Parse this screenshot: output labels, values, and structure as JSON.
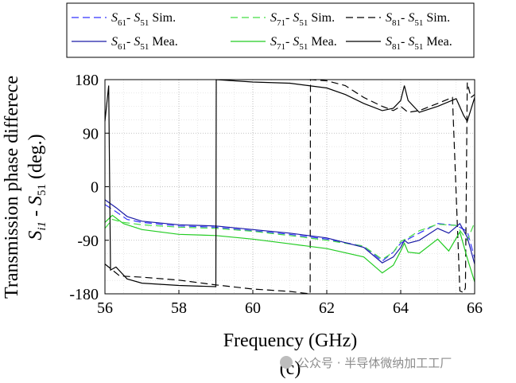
{
  "chart_data": {
    "type": "line",
    "panel_label": "(c)",
    "xlabel": "Frequency (GHz)",
    "ylabel_top": "Transmission phase differece",
    "ylabel_bottom": "S_i1 - S_51 (deg.)",
    "xlim": [
      56,
      66
    ],
    "ylim": [
      -180,
      180
    ],
    "xticks": [
      "56",
      "58",
      "60",
      "62",
      "64",
      "66"
    ],
    "yticks": [
      "180",
      "90",
      "0",
      "-90",
      "-180"
    ],
    "grid": true,
    "legend": {
      "placement": "top",
      "entries": [
        {
          "pair": [
            "61",
            "51"
          ],
          "label": "Sim.",
          "color": "#3333ff",
          "dash": "dashed"
        },
        {
          "pair": [
            "71",
            "51"
          ],
          "label": "Sim.",
          "color": "#44dd44",
          "dash": "dashed"
        },
        {
          "pair": [
            "81",
            "51"
          ],
          "label": "Sim.",
          "color": "#000000",
          "dash": "dashed"
        },
        {
          "pair": [
            "61",
            "51"
          ],
          "label": "Mea.",
          "color": "#1a1aa6",
          "dash": "solid"
        },
        {
          "pair": [
            "71",
            "51"
          ],
          "label": "Mea.",
          "color": "#22cc22",
          "dash": "solid"
        },
        {
          "pair": [
            "81",
            "51"
          ],
          "label": "Mea.",
          "color": "#000000",
          "dash": "solid"
        }
      ]
    },
    "series": [
      {
        "name": "S61 - S51 Sim.",
        "color": "#3333ff",
        "dash": "dashed",
        "points": [
          [
            56,
            -30
          ],
          [
            56.3,
            -42
          ],
          [
            56.6,
            -55
          ],
          [
            57,
            -60
          ],
          [
            58,
            -66
          ],
          [
            59,
            -68
          ],
          [
            60,
            -74
          ],
          [
            61,
            -80
          ],
          [
            62,
            -88
          ],
          [
            63,
            -100
          ],
          [
            63.5,
            -125
          ],
          [
            63.8,
            -110
          ],
          [
            64,
            -95
          ],
          [
            64.2,
            -88
          ],
          [
            64.5,
            -78
          ],
          [
            65,
            -62
          ],
          [
            65.5,
            -65
          ],
          [
            65.8,
            -75
          ],
          [
            66,
            -120
          ]
        ]
      },
      {
        "name": "S71 - S51 Sim.",
        "color": "#44dd44",
        "dash": "dashed",
        "points": [
          [
            56,
            -70
          ],
          [
            56.2,
            -55
          ],
          [
            56.5,
            -60
          ],
          [
            57,
            -64
          ],
          [
            58,
            -68
          ],
          [
            59,
            -70
          ],
          [
            60,
            -75
          ],
          [
            61,
            -82
          ],
          [
            62,
            -90
          ],
          [
            63,
            -100
          ],
          [
            63.5,
            -122
          ],
          [
            63.8,
            -110
          ],
          [
            64,
            -92
          ],
          [
            64.2,
            -86
          ],
          [
            64.5,
            -74
          ],
          [
            65,
            -63
          ],
          [
            65.5,
            -65
          ],
          [
            65.8,
            -90
          ],
          [
            66,
            -60
          ]
        ]
      },
      {
        "name": "S81 - S51 Sim.",
        "color": "#000000",
        "dash": "dashed",
        "points": [
          [
            56,
            -130
          ],
          [
            56.2,
            -140
          ],
          [
            56.4,
            -150
          ],
          [
            57,
            -152
          ],
          [
            58,
            -157
          ],
          [
            59,
            -165
          ],
          [
            60,
            -172
          ],
          [
            61,
            -176
          ],
          [
            61.55,
            -180
          ],
          [
            61.56,
            180
          ],
          [
            62,
            178
          ],
          [
            62.5,
            170
          ],
          [
            63,
            150
          ],
          [
            63.5,
            135
          ],
          [
            63.8,
            128
          ],
          [
            64,
            135
          ],
          [
            64.2,
            125
          ],
          [
            64.5,
            128
          ],
          [
            65,
            140
          ],
          [
            65.4,
            150
          ],
          [
            65.6,
            -175
          ],
          [
            65.7,
            -178
          ],
          [
            65.75,
            -170
          ],
          [
            65.8,
            175
          ],
          [
            65.9,
            150
          ],
          [
            66,
            155
          ]
        ]
      },
      {
        "name": "S61 - S51 Mea.",
        "color": "#1a1aa6",
        "dash": "solid",
        "points": [
          [
            56,
            -22
          ],
          [
            56.3,
            -35
          ],
          [
            56.6,
            -50
          ],
          [
            57,
            -58
          ],
          [
            58,
            -64
          ],
          [
            59,
            -66
          ],
          [
            60,
            -72
          ],
          [
            61,
            -78
          ],
          [
            62,
            -86
          ],
          [
            63,
            -102
          ],
          [
            63.5,
            -128
          ],
          [
            63.8,
            -118
          ],
          [
            64,
            -102
          ],
          [
            64.1,
            -90
          ],
          [
            64.2,
            -95
          ],
          [
            64.5,
            -90
          ],
          [
            65,
            -70
          ],
          [
            65.3,
            -78
          ],
          [
            65.6,
            -62
          ],
          [
            65.8,
            -85
          ],
          [
            66,
            -130
          ]
        ]
      },
      {
        "name": "S71 - S51 Mea.",
        "color": "#22cc22",
        "dash": "solid",
        "points": [
          [
            56,
            -60
          ],
          [
            56.2,
            -48
          ],
          [
            56.5,
            -62
          ],
          [
            57,
            -72
          ],
          [
            58,
            -80
          ],
          [
            59,
            -82
          ],
          [
            60,
            -88
          ],
          [
            61,
            -96
          ],
          [
            62,
            -104
          ],
          [
            63,
            -118
          ],
          [
            63.5,
            -145
          ],
          [
            63.8,
            -132
          ],
          [
            64,
            -108
          ],
          [
            64.1,
            -95
          ],
          [
            64.2,
            -110
          ],
          [
            64.5,
            -112
          ],
          [
            65,
            -88
          ],
          [
            65.3,
            -108
          ],
          [
            65.6,
            -76
          ],
          [
            65.8,
            -120
          ],
          [
            66,
            -160
          ]
        ]
      },
      {
        "name": "S81 - S51 Mea.",
        "color": "#000000",
        "dash": "solid",
        "points": [
          [
            56,
            110
          ],
          [
            56.1,
            170
          ],
          [
            56.15,
            -140
          ],
          [
            56.3,
            -135
          ],
          [
            56.6,
            -155
          ],
          [
            57,
            -162
          ],
          [
            58,
            -166
          ],
          [
            59,
            -168
          ],
          [
            59.01,
            180
          ],
          [
            60,
            176
          ],
          [
            61,
            174
          ],
          [
            62,
            166
          ],
          [
            62.5,
            155
          ],
          [
            63,
            140
          ],
          [
            63.5,
            128
          ],
          [
            63.8,
            132
          ],
          [
            64,
            145
          ],
          [
            64.1,
            170
          ],
          [
            64.2,
            145
          ],
          [
            64.5,
            125
          ],
          [
            65,
            135
          ],
          [
            65.5,
            148
          ],
          [
            65.7,
            120
          ],
          [
            65.8,
            110
          ],
          [
            66,
            150
          ]
        ]
      }
    ]
  },
  "watermark": "公众号 · 半导体微纳加工工厂"
}
